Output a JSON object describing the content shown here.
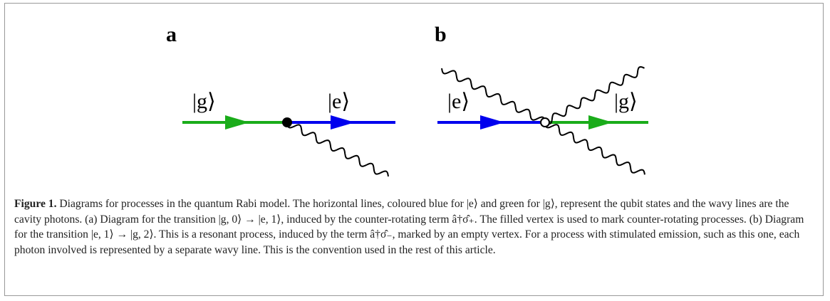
{
  "panels": [
    {
      "label": "a",
      "states": [
        "|g⟩",
        "|e⟩"
      ]
    },
    {
      "label": "b",
      "states": [
        "|e⟩",
        "|g⟩"
      ]
    }
  ],
  "caption": {
    "label": "Figure 1.",
    "text": "Diagrams for processes in the quantum Rabi model. The horizontal lines, coloured blue for |e⟩ and green for |g⟩, represent the qubit states and the wavy lines are the cavity photons. (a) Diagram for the transition |g, 0⟩ → |e, 1⟩, induced by the counter-rotating term â†σ̂₊. The filled vertex is used to mark counter-rotating processes. (b) Diagram for the transition |e, 1⟩ → |g, 2⟩. This is a resonant process, induced by the term â†σ̂₋, marked by an empty vertex. For a process with stimulated emission, such as this one, each photon involved is represented by a separate wavy line. This is the convention used in the rest of this article."
  }
}
